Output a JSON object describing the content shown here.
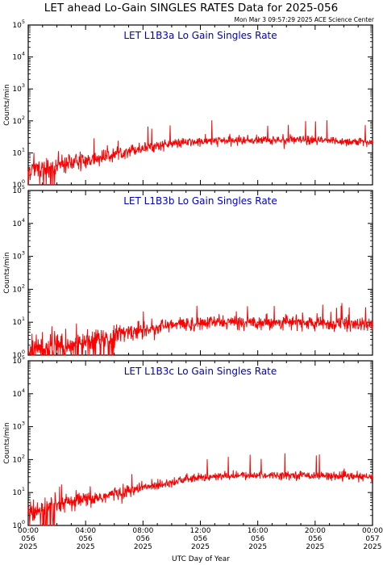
{
  "title": "LET ahead Lo-Gain SINGLES RATES Data for 2025-056",
  "timestamp": "Mon Mar  3 09:57:29 2025 ACE Science Center",
  "xlabel": "UTC Day of Year",
  "colors": {
    "series": "#ff0000",
    "panel_title": "#0000cc",
    "axes": "#000000"
  },
  "chart_data": [
    {
      "type": "line",
      "title": "LET L1B3a Lo Gain Singles Rate",
      "ylabel": "Counts/min",
      "yscale": "log",
      "ylim": [
        1,
        100000
      ],
      "yticks": [
        1,
        10,
        100,
        1000,
        10000,
        100000
      ],
      "ytick_labels": [
        "10^0",
        "10^1",
        "10^2",
        "10^3",
        "10^4",
        "10^5"
      ],
      "xlim": [
        "2025-056T00:00",
        "2025-057T00:00"
      ],
      "series": [
        {
          "color": "#ff0000",
          "x": [
            "00:00",
            "01:00",
            "02:00",
            "03:00",
            "04:00",
            "05:00",
            "06:00",
            "07:00",
            "08:00",
            "09:00",
            "10:00",
            "11:00",
            "12:00",
            "13:00",
            "14:00",
            "15:00",
            "16:00",
            "17:00",
            "18:00",
            "19:00",
            "20:00",
            "21:00",
            "22:00",
            "23:00",
            "24:00"
          ],
          "values": [
            3,
            3.5,
            4,
            5,
            5.5,
            7,
            9,
            12,
            14,
            17,
            19,
            21,
            22,
            24,
            24,
            25,
            25,
            25,
            25,
            25,
            24,
            24,
            23,
            22,
            21
          ]
        }
      ]
    },
    {
      "type": "line",
      "title": "LET L1B3b Lo Gain Singles Rate",
      "ylabel": "Counts/min",
      "yscale": "log",
      "ylim": [
        1,
        100000
      ],
      "yticks": [
        1,
        10,
        100,
        1000,
        10000,
        100000
      ],
      "ytick_labels": [
        "10^0",
        "10^1",
        "10^2",
        "10^3",
        "10^4",
        "10^5"
      ],
      "xlim": [
        "2025-056T00:00",
        "2025-057T00:00"
      ],
      "series": [
        {
          "color": "#ff0000",
          "x": [
            "00:00",
            "01:00",
            "02:00",
            "03:00",
            "04:00",
            "05:00",
            "06:00",
            "07:00",
            "08:00",
            "09:00",
            "10:00",
            "11:00",
            "12:00",
            "13:00",
            "14:00",
            "15:00",
            "16:00",
            "17:00",
            "18:00",
            "19:00",
            "20:00",
            "21:00",
            "22:00",
            "23:00",
            "24:00"
          ],
          "values": [
            1.5,
            1.8,
            2,
            2.2,
            2.6,
            3,
            4,
            5,
            6,
            7,
            8,
            9,
            9,
            10,
            10,
            10,
            10,
            10,
            10,
            10,
            9,
            9,
            9,
            8.5,
            8
          ]
        }
      ]
    },
    {
      "type": "line",
      "title": "LET L1B3c Lo Gain Singles Rate",
      "ylabel": "Counts/min",
      "yscale": "log",
      "ylim": [
        1,
        100000
      ],
      "yticks": [
        1,
        10,
        100,
        1000,
        10000,
        100000
      ],
      "ytick_labels": [
        "10^0",
        "10^1",
        "10^2",
        "10^3",
        "10^4",
        "10^5"
      ],
      "xlim": [
        "2025-056T00:00",
        "2025-057T00:00"
      ],
      "series": [
        {
          "color": "#ff0000",
          "x": [
            "00:00",
            "01:00",
            "02:00",
            "03:00",
            "04:00",
            "05:00",
            "06:00",
            "07:00",
            "08:00",
            "09:00",
            "10:00",
            "11:00",
            "12:00",
            "13:00",
            "14:00",
            "15:00",
            "16:00",
            "17:00",
            "18:00",
            "19:00",
            "20:00",
            "21:00",
            "22:00",
            "23:00",
            "24:00"
          ],
          "values": [
            2.5,
            3,
            4,
            5,
            6,
            7,
            9,
            11,
            14,
            17,
            21,
            25,
            28,
            30,
            32,
            33,
            33,
            34,
            34,
            34,
            33,
            32,
            31,
            30,
            29
          ]
        }
      ]
    }
  ],
  "x_ticks": [
    {
      "time": "00:00",
      "day": "056",
      "year": "2025"
    },
    {
      "time": "04:00",
      "day": "056",
      "year": "2025"
    },
    {
      "time": "08:00",
      "day": "056",
      "year": "2025"
    },
    {
      "time": "12:00",
      "day": "056",
      "year": "2025"
    },
    {
      "time": "16:00",
      "day": "056",
      "year": "2025"
    },
    {
      "time": "20:00",
      "day": "056",
      "year": "2025"
    },
    {
      "time": "00:00",
      "day": "057",
      "year": "2025"
    }
  ]
}
